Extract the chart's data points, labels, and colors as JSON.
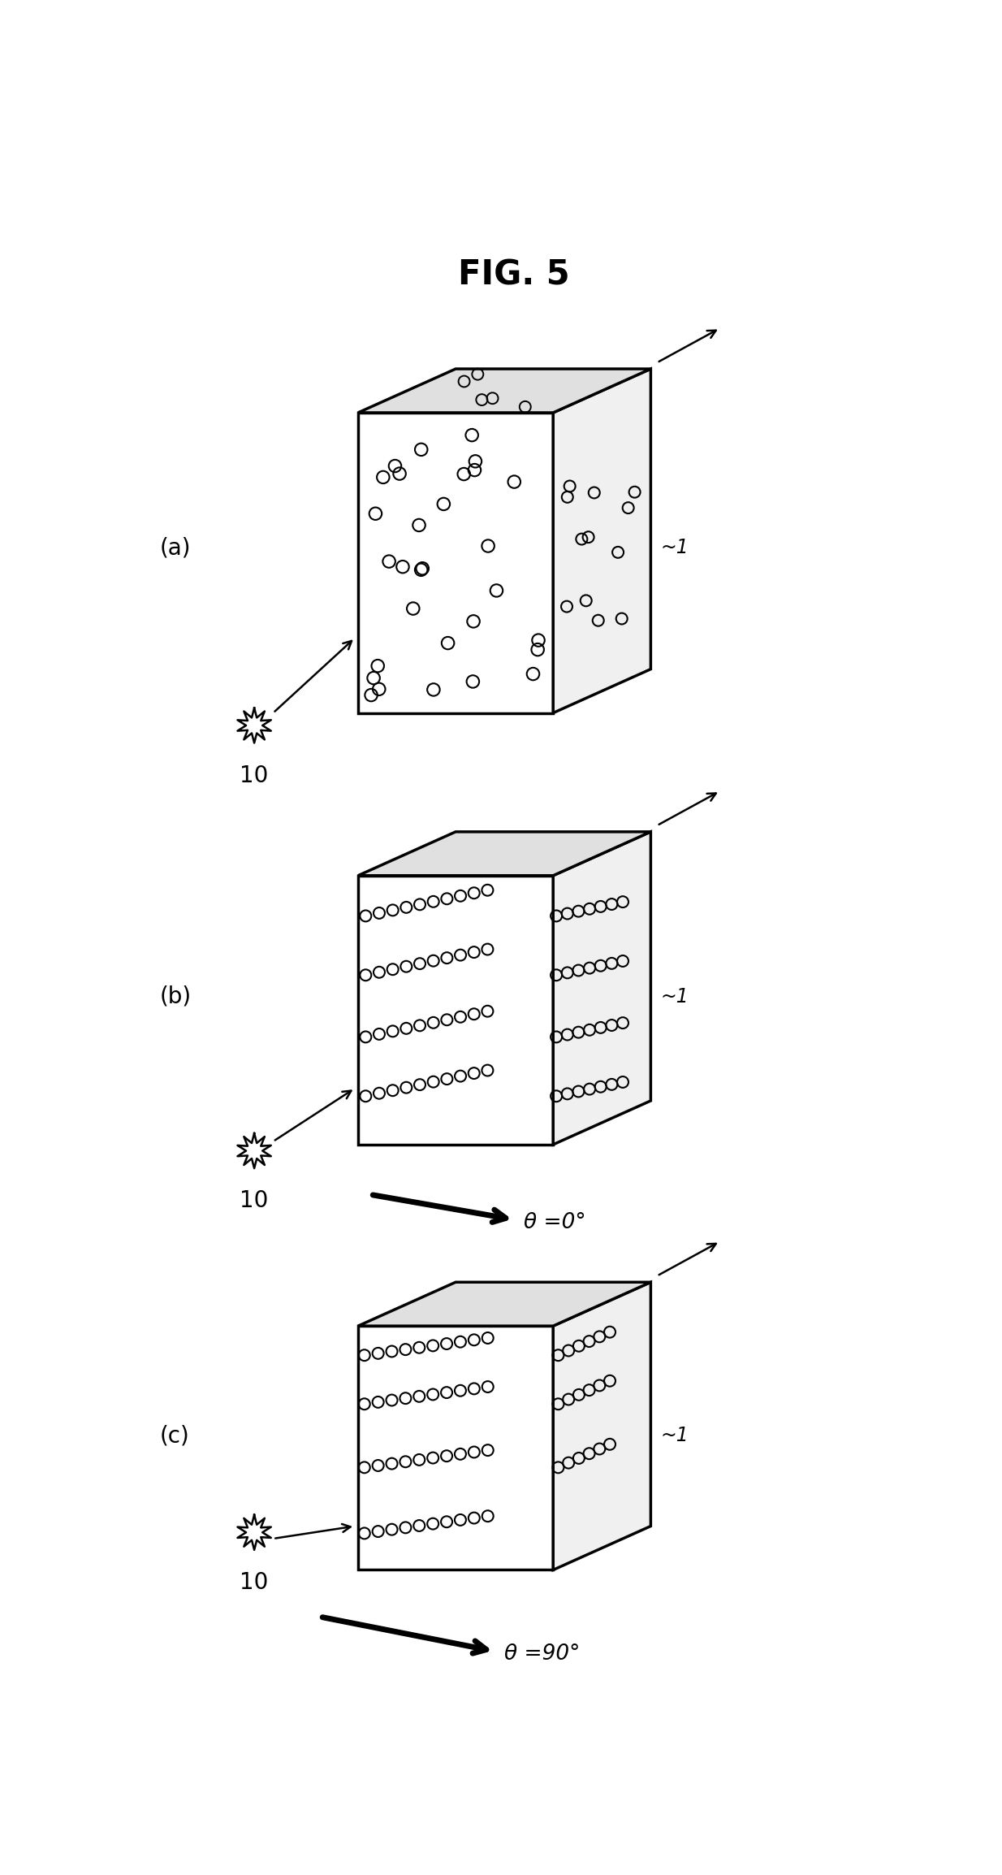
{
  "title": "FIG. 5",
  "title_fontsize": 30,
  "title_fontweight": "bold",
  "background_color": "#ffffff",
  "panels": [
    "(a)",
    "(b)",
    "(c)"
  ],
  "panel_label_fontsize": 20,
  "label_1_text": "1",
  "label_10_text": "10",
  "theta_b": "θ =0°",
  "theta_c": "θ =90°",
  "fig_width": 12.34,
  "fig_height": 23.08,
  "dpi": 100
}
